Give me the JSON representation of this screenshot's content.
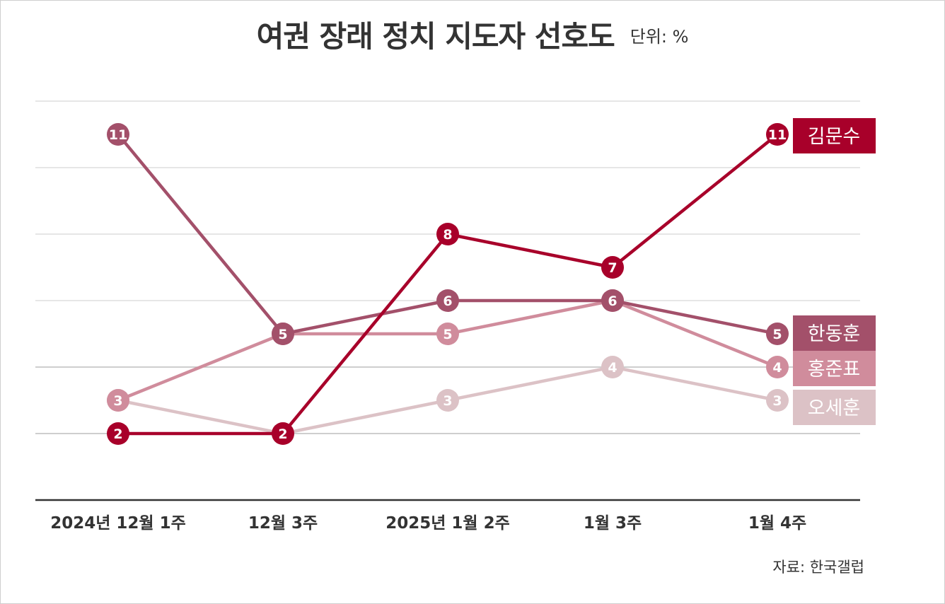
{
  "header": {
    "title": "여권 장래 정치 지도자 선호도",
    "unit": "단위: %"
  },
  "source": "자료: 한국갤럽",
  "chart_data": {
    "type": "line",
    "title": "여권 장래 정치 지도자 선호도",
    "ylabel": "",
    "unit": "%",
    "x": [
      "2024년 12월 1주",
      "12월 3주",
      "2025년 1월 2주",
      "1월 3주",
      "1월 4주"
    ],
    "ylim": [
      -0.5,
      12
    ],
    "grid": true,
    "legend_placement": "right (end-of-line labels)",
    "series": [
      {
        "name": "오세훈",
        "color": "#dcc2c6",
        "values": [
          3,
          2,
          3,
          4,
          3
        ]
      },
      {
        "name": "홍준표",
        "color": "#d08c9c",
        "values": [
          3,
          5,
          5,
          6,
          4
        ]
      },
      {
        "name": "한동훈",
        "color": "#a3506a",
        "values": [
          11,
          5,
          6,
          6,
          5
        ]
      },
      {
        "name": "김문수",
        "color": "#a8002a",
        "values": [
          2,
          2,
          8,
          7,
          11
        ]
      }
    ]
  }
}
